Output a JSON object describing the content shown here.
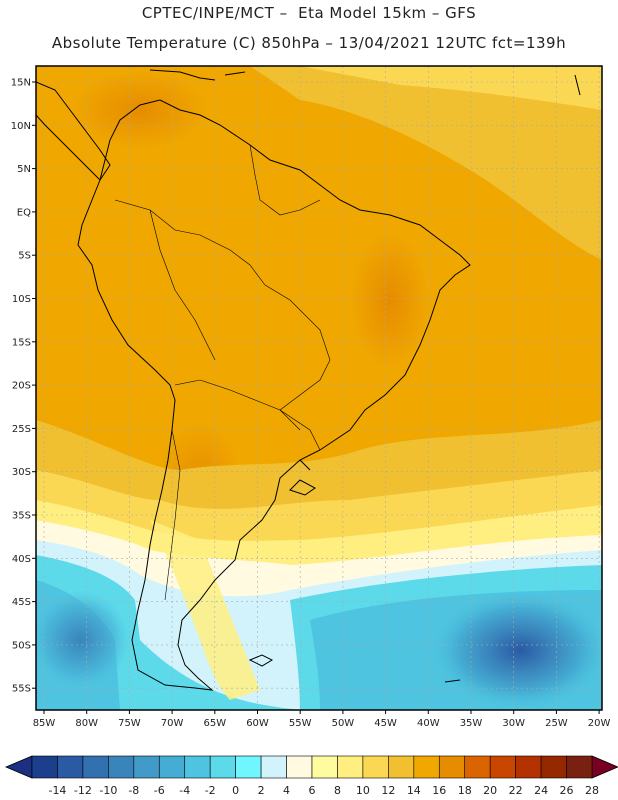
{
  "header": {
    "title_line1": "CPTEC/INPE/MCT –  Eta Model 15km – GFS",
    "title_line2": "Absolute Temperature (C) 850hPa – 13/04/2021 12UTC fct=139h"
  },
  "axes": {
    "lat_labels": [
      "15N",
      "10N",
      "5N",
      "EQ",
      "5S",
      "10S",
      "15S",
      "20S",
      "25S",
      "30S",
      "35S",
      "40S",
      "45S",
      "50S",
      "55S"
    ],
    "lon_labels": [
      "85W",
      "80W",
      "75W",
      "70W",
      "65W",
      "60W",
      "55W",
      "50W",
      "45W",
      "40W",
      "35W",
      "30W",
      "25W",
      "20W"
    ]
  },
  "colorbar": {
    "labels": [
      "-14",
      "-12",
      "-10",
      "-8",
      "-6",
      "-4",
      "-2",
      "0",
      "2",
      "4",
      "6",
      "8",
      "10",
      "12",
      "14",
      "16",
      "18",
      "20",
      "22",
      "24",
      "26",
      "28"
    ],
    "colors": [
      "#1b3f8c",
      "#2a5aa4",
      "#3370b0",
      "#3a84bc",
      "#419ac8",
      "#45add3",
      "#4ec4e0",
      "#5cdaea",
      "#6ff6ff",
      "#d2f3fb",
      "#fffae0",
      "#fffca0",
      "#ffee80",
      "#fad854",
      "#f0c030",
      "#f0a800",
      "#e68c00",
      "#dc6400",
      "#c84600",
      "#b43200",
      "#962800",
      "#7a2010"
    ],
    "low_end_color": "#1b3080",
    "high_end_color": "#780020"
  },
  "legend_colors": {
    "land_outline": "#000000",
    "grid": "#aaaaaa",
    "frame": "#000000"
  }
}
